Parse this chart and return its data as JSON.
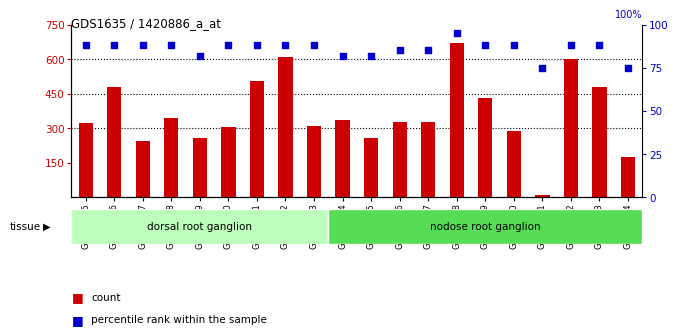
{
  "title": "GDS1635 / 1420886_a_at",
  "categories": [
    "GSM63675",
    "GSM63676",
    "GSM63677",
    "GSM63678",
    "GSM63679",
    "GSM63680",
    "GSM63681",
    "GSM63682",
    "GSM63683",
    "GSM63684",
    "GSM63685",
    "GSM63686",
    "GSM63687",
    "GSM63688",
    "GSM63689",
    "GSM63690",
    "GSM63691",
    "GSM63692",
    "GSM63693",
    "GSM63694"
  ],
  "bar_values": [
    320,
    480,
    245,
    345,
    255,
    305,
    505,
    610,
    310,
    335,
    255,
    325,
    325,
    670,
    430,
    285,
    10,
    600,
    480,
    175
  ],
  "dot_values": [
    88,
    88,
    88,
    88,
    82,
    88,
    88,
    88,
    88,
    82,
    82,
    85,
    85,
    95,
    88,
    88,
    75,
    88,
    88,
    75
  ],
  "bar_color": "#cc0000",
  "dot_color": "#0000cc",
  "ylim_left": [
    0,
    750
  ],
  "ylim_right": [
    0,
    100
  ],
  "yticks_left": [
    150,
    300,
    450,
    600,
    750
  ],
  "yticks_right": [
    0,
    25,
    50,
    75,
    100
  ],
  "grid_values": [
    300,
    450,
    600
  ],
  "tissue_groups": [
    {
      "label": "dorsal root ganglion",
      "start": 0,
      "end": 9,
      "color": "#bbffbb"
    },
    {
      "label": "nodose root ganglion",
      "start": 9,
      "end": 20,
      "color": "#55dd55"
    }
  ],
  "tissue_label": "tissue",
  "legend_count": "count",
  "legend_percentile": "percentile rank within the sample",
  "bar_width": 0.5,
  "background_color": "#ffffff",
  "plot_bg": "#ffffff"
}
